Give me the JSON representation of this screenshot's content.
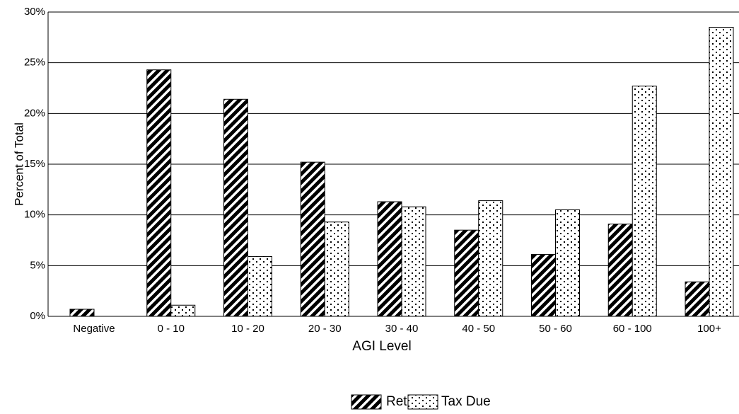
{
  "chart_data": {
    "type": "bar",
    "x_label": "AGI Level",
    "y_label": "Percent of Total",
    "categories": [
      "Negative",
      "0 - 10",
      "10 - 20",
      "20 - 30",
      "30 - 40",
      "40 - 50",
      "50 - 60",
      "60 - 100",
      "100+"
    ],
    "series": [
      {
        "name": "Retur",
        "color": "#000000",
        "pattern": "diagonal",
        "values": [
          0.7,
          24.3,
          21.4,
          15.2,
          11.3,
          8.5,
          6.1,
          9.1,
          3.4
        ]
      },
      {
        "name": "Tax Due",
        "color": "#000000",
        "pattern": "dots",
        "values": [
          0,
          1.1,
          5.9,
          9.3,
          10.8,
          11.4,
          10.5,
          22.7,
          28.5
        ]
      }
    ],
    "ylim": [
      0,
      30
    ],
    "yticks": [
      {
        "value": 0,
        "label": "0%"
      },
      {
        "value": 5,
        "label": "5%"
      },
      {
        "value": 10,
        "label": "10%"
      },
      {
        "value": 15,
        "label": "15%"
      },
      {
        "value": 20,
        "label": "20%"
      },
      {
        "value": 25,
        "label": "25%"
      },
      {
        "value": 30,
        "label": "30%"
      }
    ],
    "grid": true,
    "legend": "bottom"
  }
}
